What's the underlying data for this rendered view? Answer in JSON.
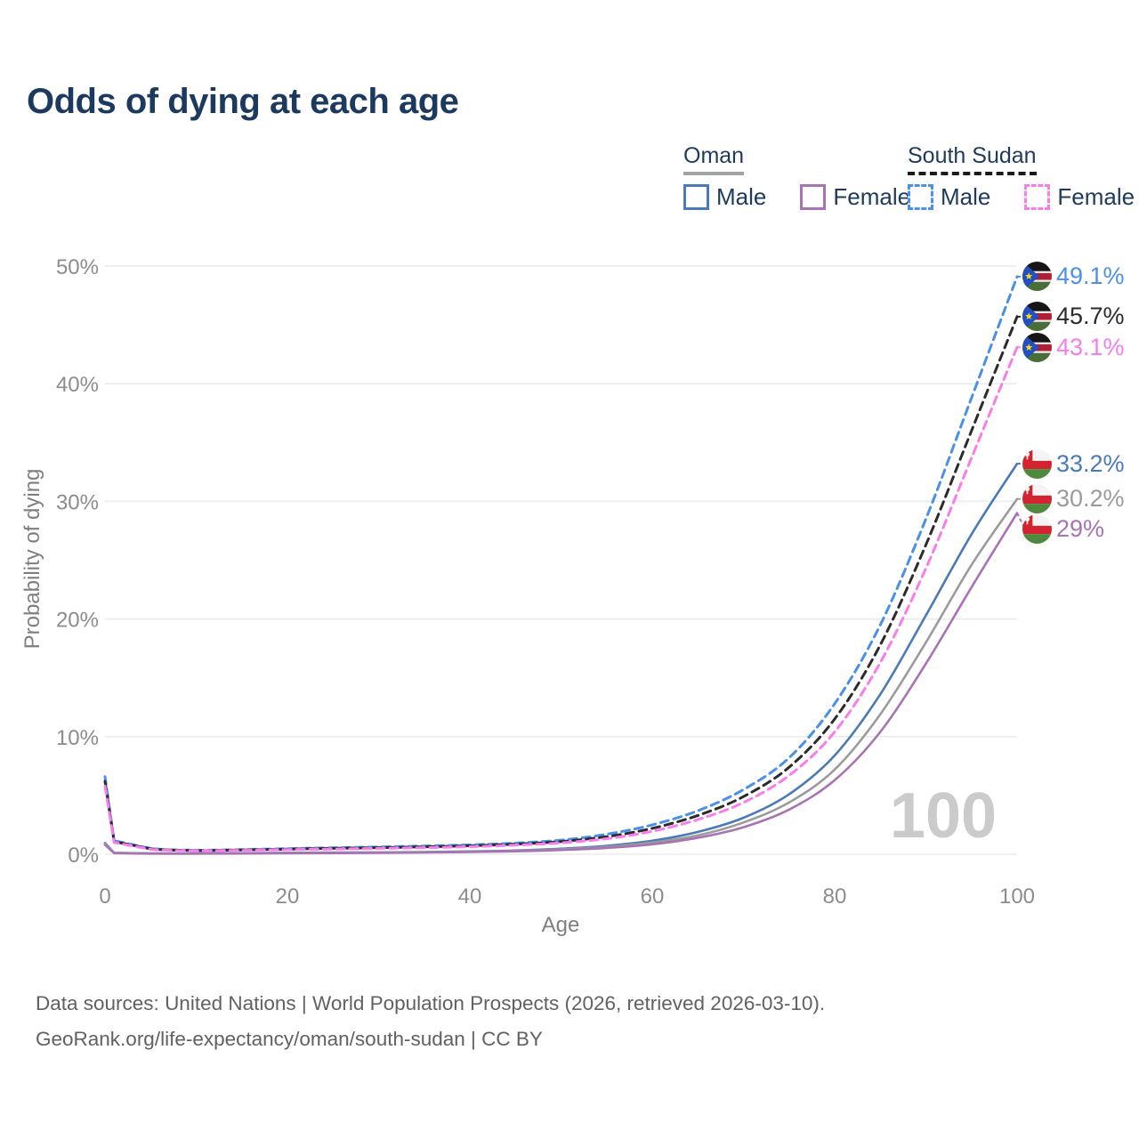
{
  "title": "Odds of dying at each age",
  "legend": {
    "groups": [
      {
        "label": "Oman",
        "line_style": "solid",
        "underline_color": "#a3a3a3",
        "items": [
          {
            "label": "Male",
            "color": "#4a7ab8",
            "dashed": false
          },
          {
            "label": "Female",
            "color": "#a873b3",
            "dashed": false
          }
        ]
      },
      {
        "label": "South Sudan",
        "line_style": "dashed",
        "underline_color": "#1a1a1a",
        "items": [
          {
            "label": "Male",
            "color": "#4a90ea",
            "dashed": true
          },
          {
            "label": "Female",
            "color": "#f87ceb",
            "dashed": true
          }
        ]
      }
    ]
  },
  "chart_data": {
    "type": "line",
    "title": "Odds of dying at each age",
    "xlabel": "Age",
    "ylabel": "Probability of dying",
    "x_ticks": [
      0,
      20,
      40,
      60,
      80,
      100
    ],
    "y_ticks": [
      0,
      10,
      20,
      30,
      40,
      50
    ],
    "xlim": [
      0,
      100
    ],
    "ylim": [
      0,
      50
    ],
    "grid": "horizontal",
    "hover_age": "100",
    "ages": [
      0,
      1,
      5,
      10,
      15,
      20,
      25,
      30,
      35,
      40,
      45,
      50,
      55,
      60,
      65,
      70,
      75,
      80,
      85,
      90,
      95,
      100
    ],
    "series": [
      {
        "id": "oman-male",
        "name": "Oman Male",
        "country": "Oman",
        "sex": "Male",
        "color": "#4a7ab8",
        "dashed": false,
        "end_value": 33.2,
        "end_label": "33.2%",
        "flag": "oman",
        "values": [
          0.95,
          0.12,
          0.07,
          0.07,
          0.09,
          0.12,
          0.14,
          0.16,
          0.19,
          0.24,
          0.32,
          0.47,
          0.72,
          1.15,
          1.9,
          3.1,
          5.1,
          8.4,
          13.6,
          20.3,
          27.2,
          33.2
        ]
      },
      {
        "id": "oman-total",
        "name": "Oman",
        "country": "Oman",
        "sex": "Both",
        "color": "#9b9b9b",
        "dashed": false,
        "end_value": 30.2,
        "end_label": "30.2%",
        "flag": "oman",
        "values": [
          0.88,
          0.11,
          0.06,
          0.06,
          0.08,
          0.1,
          0.12,
          0.14,
          0.17,
          0.21,
          0.28,
          0.41,
          0.62,
          1.0,
          1.6,
          2.7,
          4.4,
          7.2,
          11.9,
          18.0,
          24.6,
          30.2
        ]
      },
      {
        "id": "oman-female",
        "name": "Oman Female",
        "country": "Oman",
        "sex": "Female",
        "color": "#a873b3",
        "dashed": false,
        "end_value": 29.0,
        "end_label": "29%",
        "flag": "oman",
        "values": [
          0.8,
          0.1,
          0.055,
          0.055,
          0.07,
          0.09,
          0.1,
          0.12,
          0.15,
          0.19,
          0.25,
          0.36,
          0.54,
          0.85,
          1.4,
          2.3,
          3.8,
          6.3,
          10.4,
          16.2,
          22.7,
          29.0
        ]
      },
      {
        "id": "south-sudan-male",
        "name": "South Sudan Male",
        "country": "South Sudan",
        "sex": "Male",
        "color": "#4a90ea",
        "dashed": true,
        "end_value": 49.1,
        "end_label": "49.1%",
        "flag": "south-sudan",
        "values": [
          6.6,
          1.15,
          0.5,
          0.35,
          0.4,
          0.48,
          0.55,
          0.62,
          0.7,
          0.8,
          0.95,
          1.2,
          1.7,
          2.5,
          3.7,
          5.5,
          8.2,
          12.8,
          19.5,
          28.5,
          38.8,
          49.1
        ]
      },
      {
        "id": "south-sudan-total",
        "name": "South Sudan",
        "country": "South Sudan",
        "sex": "Both",
        "color": "#2b2b2b",
        "dashed": true,
        "end_value": 45.7,
        "end_label": "45.7%",
        "flag": "south-sudan",
        "values": [
          6.2,
          1.08,
          0.46,
          0.32,
          0.36,
          0.43,
          0.5,
          0.56,
          0.63,
          0.72,
          0.86,
          1.08,
          1.5,
          2.2,
          3.3,
          4.9,
          7.4,
          11.5,
          17.8,
          26.3,
          36.0,
          45.7
        ]
      },
      {
        "id": "south-sudan-female",
        "name": "South Sudan Female",
        "country": "South Sudan",
        "sex": "Female",
        "color": "#f87ceb",
        "dashed": true,
        "end_value": 43.1,
        "end_label": "43.1%",
        "flag": "south-sudan",
        "values": [
          5.8,
          1.0,
          0.42,
          0.3,
          0.33,
          0.39,
          0.44,
          0.5,
          0.56,
          0.64,
          0.77,
          0.97,
          1.32,
          1.95,
          2.95,
          4.4,
          6.7,
          10.4,
          16.3,
          24.3,
          33.7,
          43.1
        ]
      }
    ]
  },
  "footer": {
    "line1": "Data sources: United Nations | World Population Prospects (2026, retrieved 2026-03-10).",
    "line2": "GeoRank.org/life-expectancy/oman/south-sudan | CC BY"
  }
}
